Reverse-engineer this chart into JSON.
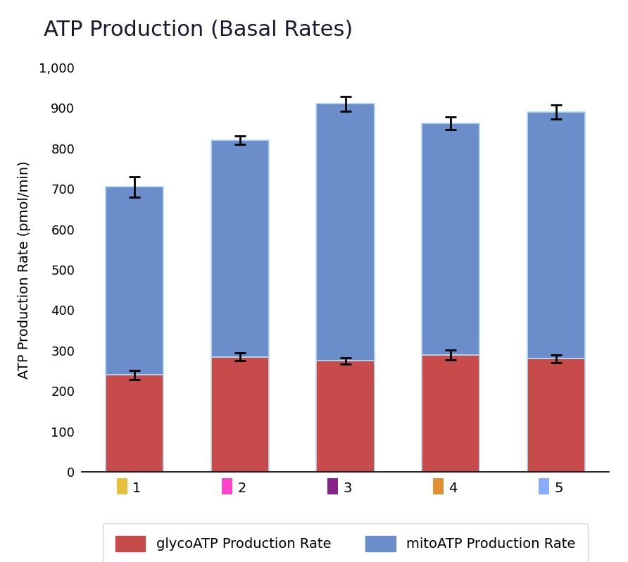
{
  "title": "ATP Production (Basal Rates)",
  "ylabel": "ATP Production Rate (pmol/min)",
  "categories": [
    "1",
    "2",
    "3",
    "4",
    "5"
  ],
  "cat_colors": [
    "#e8c040",
    "#ff44cc",
    "#882288",
    "#e09030",
    "#88aaff"
  ],
  "glyco_values": [
    240,
    285,
    275,
    290,
    280
  ],
  "mito_values": [
    465,
    535,
    635,
    572,
    610
  ],
  "glyco_errors": [
    12,
    10,
    8,
    12,
    10
  ],
  "mito_errors": [
    25,
    10,
    18,
    15,
    18
  ],
  "glyco_color": "#c74b4b",
  "mito_color": "#6b8dc9",
  "bar_edge_color": "#b8ddf0",
  "ylim": [
    0,
    1000
  ],
  "yticks": [
    0,
    100,
    200,
    300,
    400,
    500,
    600,
    700,
    800,
    900,
    1000
  ],
  "bar_width": 0.55,
  "legend_glyco": "glycoATP Production Rate",
  "legend_mito": "mitoATP Production Rate",
  "title_fontsize": 22,
  "axis_fontsize": 14,
  "tick_fontsize": 13,
  "legend_fontsize": 14,
  "background_color": "#ffffff"
}
